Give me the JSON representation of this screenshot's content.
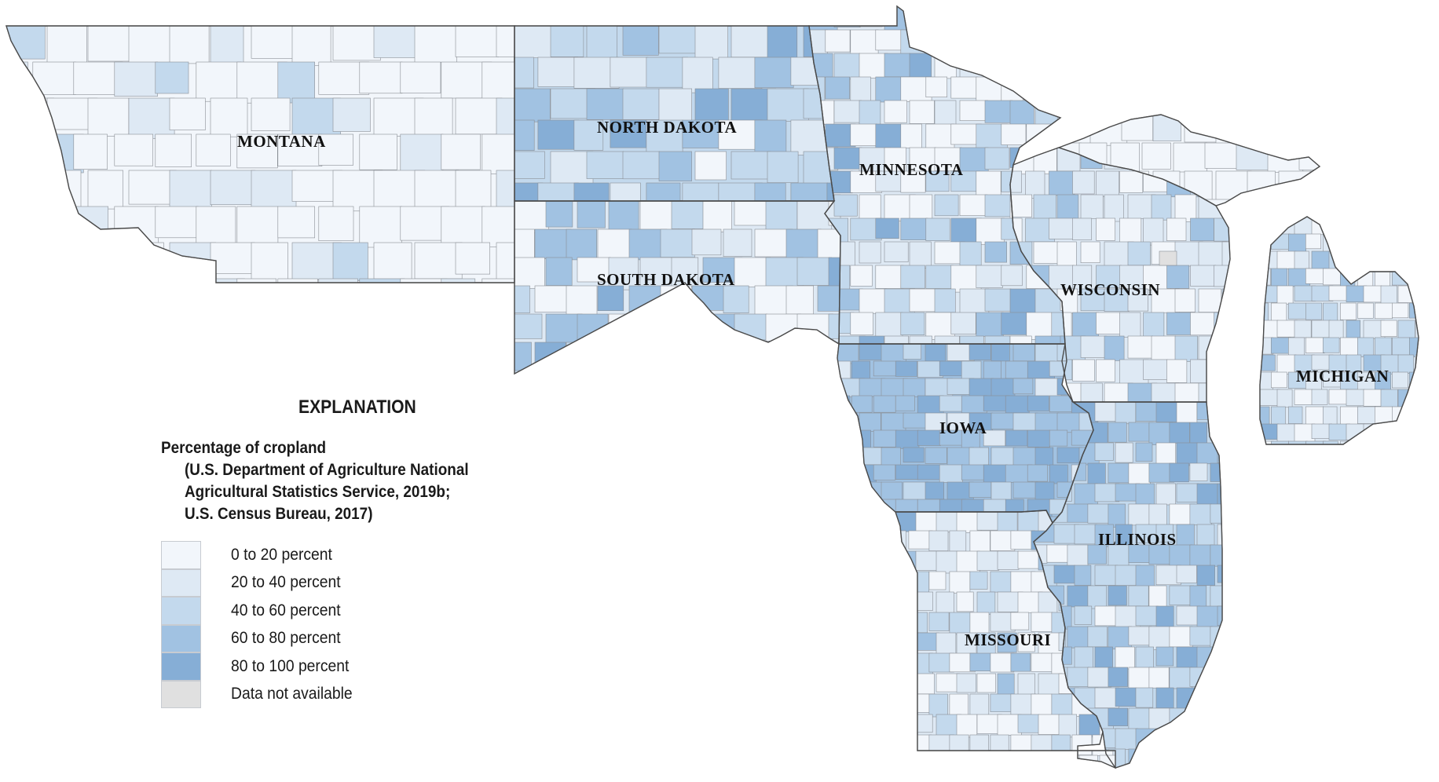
{
  "map": {
    "states": [
      {
        "name": "MONTANA"
      },
      {
        "name": "NORTH DAKOTA"
      },
      {
        "name": "SOUTH DAKOTA"
      },
      {
        "name": "MINNESOTA"
      },
      {
        "name": "WISCONSIN"
      },
      {
        "name": "IOWA"
      },
      {
        "name": "MICHIGAN"
      },
      {
        "name": "ILLINOIS"
      },
      {
        "name": "MISSOURI"
      }
    ]
  },
  "legend": {
    "heading": "EXPLANATION",
    "subtitle": "Percentage of cropland",
    "source_lines": [
      "(U.S. Department of Agriculture National",
      "Agricultural Statistics Service, 2019b;",
      "U.S. Census Bureau, 2017)"
    ],
    "classes": [
      {
        "label": "0 to 20 percent",
        "color": "#f2f6fb"
      },
      {
        "label": "20 to 40 percent",
        "color": "#dee9f4"
      },
      {
        "label": "40 to 60 percent",
        "color": "#c3d9ed"
      },
      {
        "label": "60 to 80 percent",
        "color": "#a1c2e2"
      },
      {
        "label": "80 to 100 percent",
        "color": "#86aed6"
      },
      {
        "label": "Data not available",
        "color": "#e0e0e0"
      }
    ]
  }
}
